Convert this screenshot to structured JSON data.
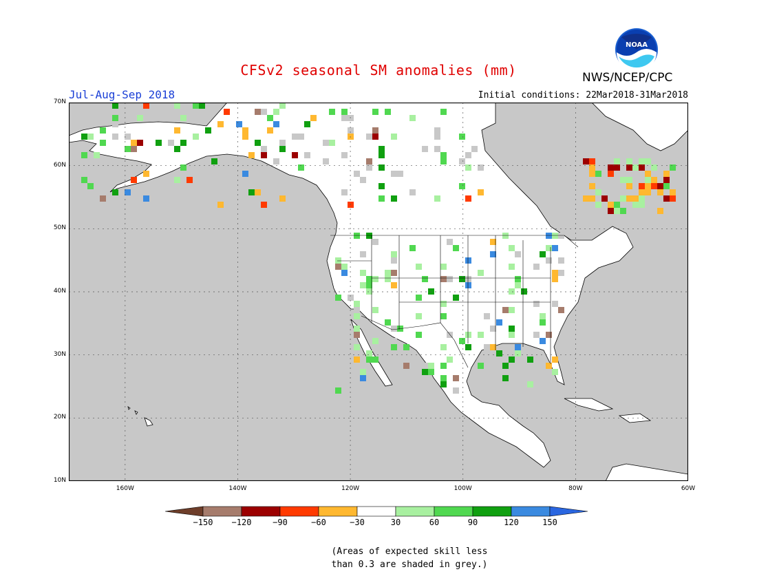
{
  "header": {
    "title": "CFSv2 seasonal SM anomalies (mm)",
    "period": "Jul-Aug-Sep 2018",
    "initial_conditions": "Initial conditions: 22Mar2018-31Mar2018",
    "agency": "NWS/NCEP/CPC",
    "logo_text": "NOAA"
  },
  "map": {
    "lat_labels": [
      "70N",
      "60N",
      "50N",
      "40N",
      "30N",
      "20N",
      "10N"
    ],
    "lat_values": [
      70,
      60,
      50,
      40,
      30,
      20,
      10
    ],
    "lon_labels": [
      "160W",
      "140W",
      "120W",
      "100W",
      "80W",
      "60W"
    ],
    "lon_values": [
      -160,
      -140,
      -120,
      -100,
      -80,
      -60
    ],
    "lon_range": [
      -170,
      -60
    ],
    "lat_range": [
      10,
      70
    ],
    "ocean_color": "#c8c8c8",
    "land_color": "#ffffff"
  },
  "legend": {
    "ticks": [
      "-150",
      "-120",
      "-90",
      "-60",
      "-30",
      "30",
      "60",
      "90",
      "120",
      "150"
    ],
    "colors": [
      "#6e3e2a",
      "#a67c6c",
      "#9c0000",
      "#ff3a00",
      "#ffb830",
      "#ffffff",
      "#a8f0a0",
      "#50d850",
      "#10a010",
      "#3a8ae0",
      "#2a66e0"
    ],
    "note_line1": "(Areas of expected skill less",
    "note_line2": "than 0.3 are shaded in grey.)"
  }
}
